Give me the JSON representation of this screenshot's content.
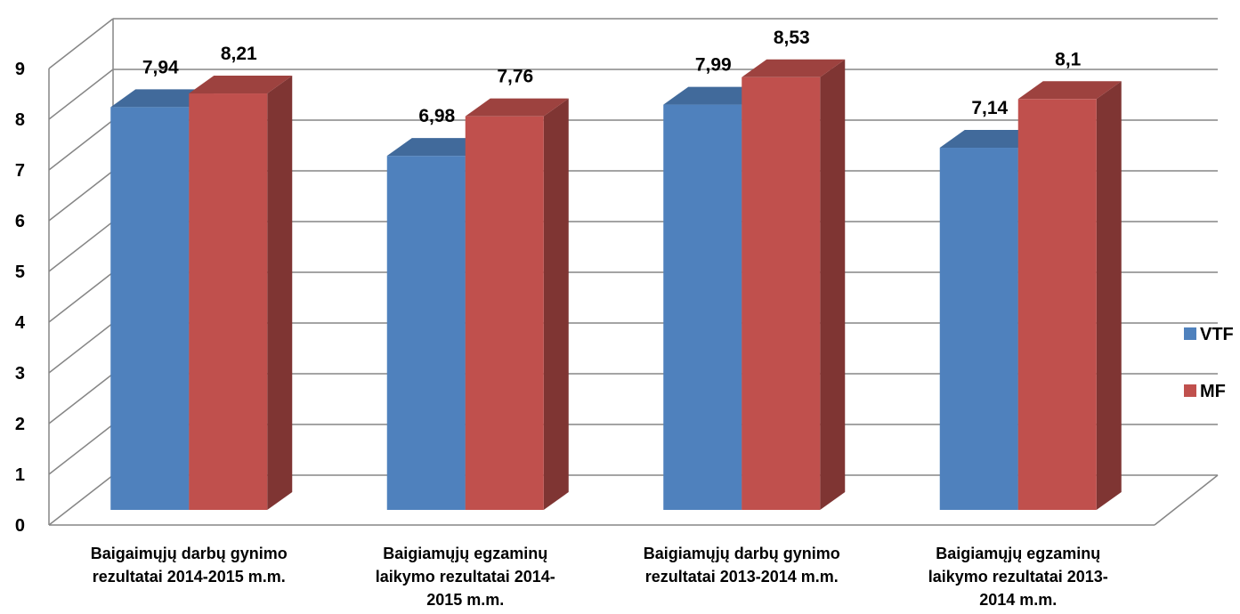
{
  "chart_data": {
    "type": "bar",
    "title": "",
    "xlabel": "",
    "ylabel": "",
    "ylim": [
      0,
      9
    ],
    "yticks": [
      "0",
      "1",
      "2",
      "3",
      "4",
      "5",
      "6",
      "7",
      "8",
      "9"
    ],
    "categories": [
      [
        "Baigaimųjų darbų gynimo",
        "rezultatai 2014-2015 m.m."
      ],
      [
        "Baigiamųjų egzaminų",
        "laikymo rezultatai 2014-",
        "2015 m.m."
      ],
      [
        "Baigiamųjų darbų gynimo",
        "rezultatai 2013-2014 m.m."
      ],
      [
        "Baigiamųjų egzaminų",
        "laikymo rezultatai 2013-",
        "2014 m.m."
      ]
    ],
    "series": [
      {
        "name": "VTF",
        "values": [
          7.94,
          6.98,
          7.99,
          7.14
        ],
        "labels": [
          "7,94",
          "6,98",
          "7,99",
          "7,14"
        ],
        "color": "#4F81BD"
      },
      {
        "name": "MF",
        "values": [
          8.21,
          7.76,
          8.53,
          8.1
        ],
        "labels": [
          "8,21",
          "7,76",
          "8,53",
          "8,1"
        ],
        "color": "#C0504D"
      }
    ],
    "grid": true,
    "legend_position": "right",
    "style": "3d-clustered-column"
  }
}
